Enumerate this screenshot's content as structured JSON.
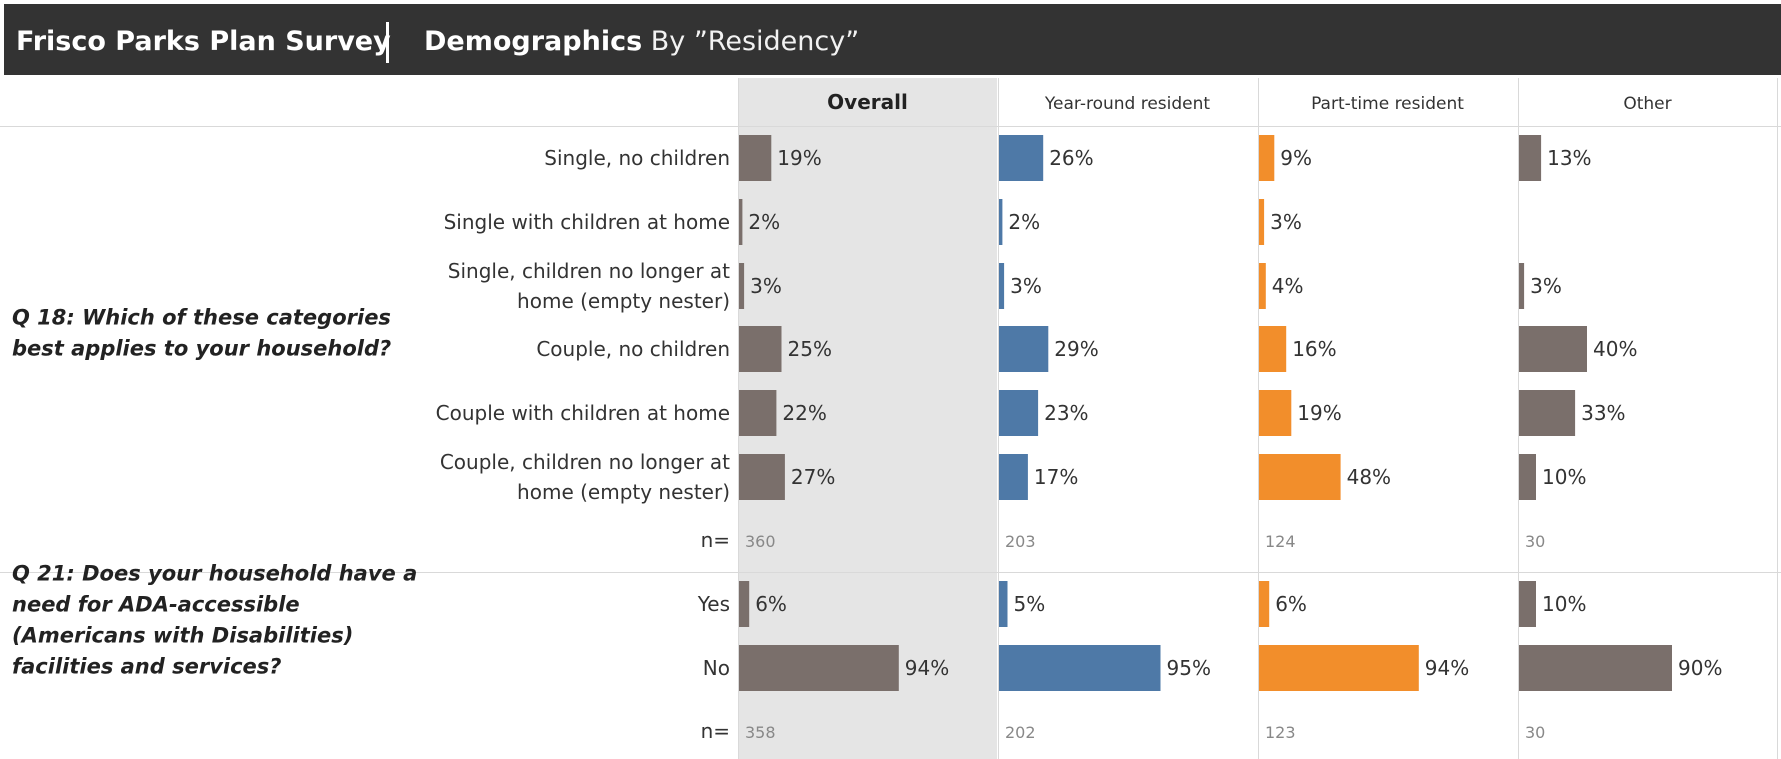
{
  "header": {
    "title": "Frisco Parks Plan Survey",
    "subtitle_bold": "Demographics",
    "subtitle_rest": " By ”Residency”"
  },
  "colors": {
    "header_bg": "#333333",
    "overall_panel_bg": "#e5e5e5",
    "overall": "#7a6f6b",
    "year_round": "#4e79a7",
    "part_time": "#f28e2b",
    "other": "#7a6f6b"
  },
  "chart_data": {
    "type": "bar",
    "orientation": "horizontal",
    "columns": [
      "Overall",
      "Year-round resident",
      "Part-time resident",
      "Other"
    ],
    "sections": [
      {
        "question": "Q 18: Which of these categories best applies to your household?",
        "categories": [
          "Single, no children",
          "Single with children at home",
          "Single, children no longer at home (empty nester)",
          "Couple, no children",
          "Couple with children at home",
          "Couple, children no longer at home (empty nester)"
        ],
        "series": [
          {
            "name": "Overall",
            "values": [
              19,
              2,
              3,
              25,
              22,
              27
            ],
            "n": 360
          },
          {
            "name": "Year-round resident",
            "values": [
              26,
              2,
              3,
              29,
              23,
              17
            ],
            "n": 203
          },
          {
            "name": "Part-time resident",
            "values": [
              9,
              3,
              4,
              16,
              19,
              48
            ],
            "n": 124
          },
          {
            "name": "Other",
            "values": [
              13,
              null,
              3,
              40,
              33,
              10
            ],
            "n": 30
          }
        ]
      },
      {
        "question": "Q 21: Does your household have a need for ADA-accessible (Americans with Disabilities) facilities and services?",
        "categories": [
          "Yes",
          "No"
        ],
        "series": [
          {
            "name": "Overall",
            "values": [
              6,
              94
            ],
            "n": 358
          },
          {
            "name": "Year-round resident",
            "values": [
              5,
              95
            ],
            "n": 202
          },
          {
            "name": "Part-time resident",
            "values": [
              6,
              94
            ],
            "n": 123
          },
          {
            "name": "Other",
            "values": [
              10,
              90
            ],
            "n": 30
          }
        ]
      }
    ],
    "n_label": "n=",
    "value_suffix": "%",
    "xlim": [
      0,
      100
    ]
  }
}
